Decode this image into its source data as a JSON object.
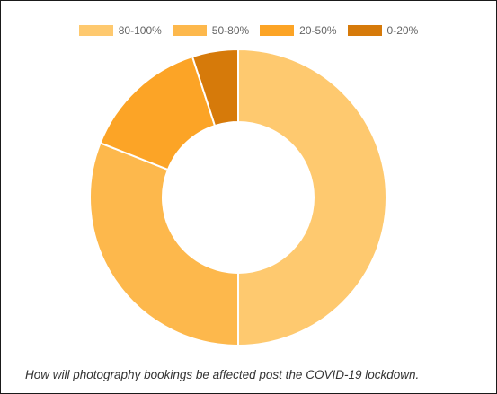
{
  "chart_data": {
    "type": "pie",
    "variant": "donut",
    "categories": [
      "80-100%",
      "50-80%",
      "20-50%",
      "0-20%"
    ],
    "values": [
      50,
      31,
      14,
      5
    ],
    "colors": [
      "#fec96f",
      "#fdb84c",
      "#fca426",
      "#d67a0a"
    ],
    "legend_position": "top-center",
    "title": "",
    "caption": "How will photography bookings be affected post the COVID-19 lockdown."
  }
}
